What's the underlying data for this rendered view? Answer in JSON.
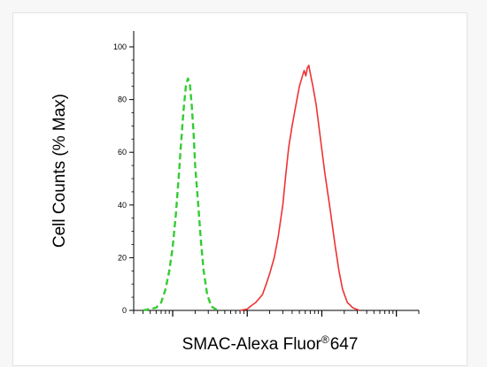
{
  "chart_data": {
    "type": "histogram",
    "ylabel": "Cell Counts (% Max)",
    "xlabel": {
      "text_before": "SMAC-Alexa Fluor",
      "superscript": "®",
      "text_after": "647"
    },
    "x_scale": "log",
    "xlim": [
      0.3,
      2000
    ],
    "ylim": [
      0,
      100
    ],
    "y_ticks": [
      0,
      20,
      40,
      60,
      80,
      100
    ],
    "x_major_ticks": [
      1,
      10,
      100,
      1000
    ],
    "x_tick_labels_shown": false,
    "grid": false,
    "legend": "none",
    "series": [
      {
        "color": "#33cc33",
        "line_style": "dashed",
        "points": [
          [
            0.4,
            0
          ],
          [
            0.6,
            1
          ],
          [
            0.7,
            3
          ],
          [
            0.8,
            8
          ],
          [
            0.9,
            15
          ],
          [
            1.0,
            24
          ],
          [
            1.1,
            36
          ],
          [
            1.2,
            50
          ],
          [
            1.3,
            64
          ],
          [
            1.4,
            76
          ],
          [
            1.5,
            85
          ],
          [
            1.6,
            88
          ],
          [
            1.7,
            86
          ],
          [
            1.8,
            78
          ],
          [
            1.9,
            68
          ],
          [
            2.0,
            55
          ],
          [
            2.2,
            40
          ],
          [
            2.4,
            26
          ],
          [
            2.6,
            15
          ],
          [
            2.9,
            6
          ],
          [
            3.3,
            1.5
          ],
          [
            4.0,
            0
          ]
        ]
      },
      {
        "color": "#ee3333",
        "line_style": "solid",
        "points": [
          [
            8,
            0
          ],
          [
            10,
            0.5
          ],
          [
            11,
            1.5
          ],
          [
            13,
            3
          ],
          [
            16,
            6
          ],
          [
            18,
            10
          ],
          [
            20,
            14
          ],
          [
            23,
            20
          ],
          [
            26,
            28
          ],
          [
            30,
            40
          ],
          [
            33,
            52
          ],
          [
            36,
            62
          ],
          [
            40,
            70
          ],
          [
            45,
            78
          ],
          [
            50,
            85
          ],
          [
            55,
            89
          ],
          [
            58,
            91
          ],
          [
            61,
            89
          ],
          [
            64,
            92
          ],
          [
            67,
            93
          ],
          [
            70,
            90
          ],
          [
            76,
            85
          ],
          [
            84,
            78
          ],
          [
            95,
            66
          ],
          [
            110,
            52
          ],
          [
            130,
            38
          ],
          [
            150,
            25
          ],
          [
            170,
            15
          ],
          [
            190,
            8
          ],
          [
            220,
            3
          ],
          [
            260,
            1
          ],
          [
            320,
            0
          ]
        ]
      }
    ]
  }
}
